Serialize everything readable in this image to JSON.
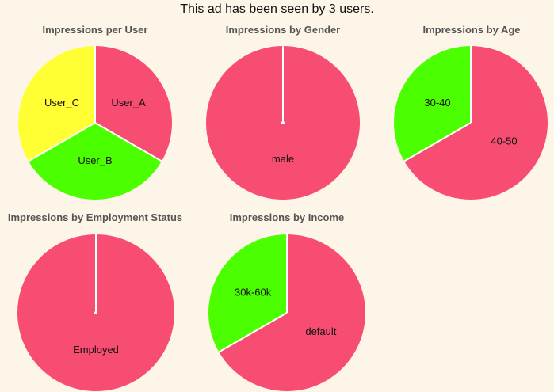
{
  "headline": "This ad has been seen by 3 users.",
  "colors": {
    "pink": "#f74d72",
    "green": "#4cff00",
    "yellow": "#ffff33",
    "separator": "#ffffff",
    "background": "#fdf6e8"
  },
  "chart_data": [
    {
      "type": "pie",
      "title": "Impressions per User",
      "slices": [
        {
          "label": "User_A",
          "value": 1,
          "color": "#f74d72"
        },
        {
          "label": "User_B",
          "value": 1,
          "color": "#4cff00"
        },
        {
          "label": "User_C",
          "value": 1,
          "color": "#ffff33"
        }
      ]
    },
    {
      "type": "pie",
      "title": "Impressions by Gender",
      "slices": [
        {
          "label": "male",
          "value": 3,
          "color": "#f74d72"
        }
      ]
    },
    {
      "type": "pie",
      "title": "Impressions by Age",
      "slices": [
        {
          "label": "40-50",
          "value": 2,
          "color": "#f74d72"
        },
        {
          "label": "30-40",
          "value": 1,
          "color": "#4cff00"
        }
      ]
    },
    {
      "type": "pie",
      "title": "Impressions by Employment Status",
      "slices": [
        {
          "label": "Employed",
          "value": 3,
          "color": "#f74d72"
        }
      ]
    },
    {
      "type": "pie",
      "title": "Impressions by Income",
      "slices": [
        {
          "label": "default",
          "value": 2,
          "color": "#f74d72"
        },
        {
          "label": "30k-60k",
          "value": 1,
          "color": "#4cff00"
        }
      ]
    }
  ]
}
